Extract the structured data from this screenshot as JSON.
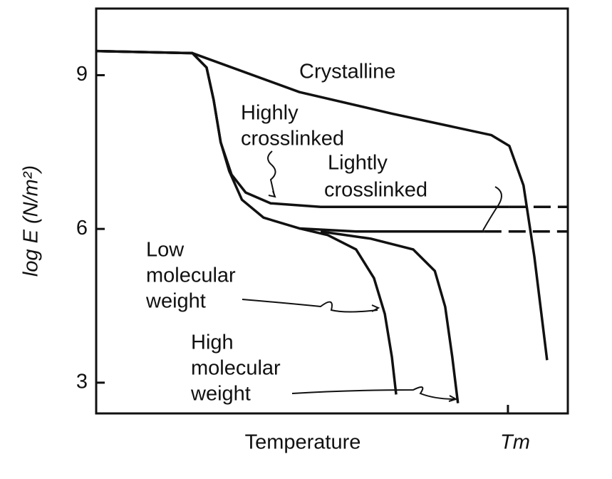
{
  "chart_data": {
    "type": "line",
    "ylabel": "log E (N/m²)",
    "xlabel": "Temperature",
    "xlim": [
      0,
      100
    ],
    "ylim": [
      2.4,
      10.3
    ],
    "xticks": [
      {
        "value": 87.3,
        "label": "Tm"
      }
    ],
    "yticks": [
      3,
      6,
      9
    ],
    "series": [
      {
        "color": "#111111",
        "style": "solid",
        "x": [
          0,
          20.4,
          43.1,
          62.7,
          83.8,
          87.6,
          90.6,
          92.9,
          94.4,
          95.6
        ],
        "values": [
          9.47,
          9.43,
          8.67,
          8.25,
          7.83,
          7.62,
          6.85,
          5.46,
          4.34,
          3.44
        ]
      },
      {
        "color": "#111111",
        "style": "solid",
        "x": [
          0,
          20.4,
          23.4,
          24.9,
          26.4,
          28.7,
          31.7,
          37,
          47.6,
          87.6
        ],
        "values": [
          9.47,
          9.43,
          9.15,
          8.52,
          7.69,
          7.06,
          6.71,
          6.5,
          6.43,
          6.43
        ]
      },
      {
        "color": "#111111",
        "style": "dashed",
        "x": [
          87.6,
          100
        ],
        "values": [
          6.43,
          6.43
        ]
      },
      {
        "color": "#111111",
        "style": "solid",
        "x": [
          0,
          20.4,
          23.4,
          24.9,
          26.4,
          28.2,
          30.9,
          35.5,
          43.1,
          55.1,
          82.3
        ],
        "values": [
          9.47,
          9.43,
          9.15,
          8.52,
          7.69,
          7.13,
          6.57,
          6.22,
          6.01,
          5.95,
          5.95
        ]
      },
      {
        "color": "#111111",
        "style": "dashed",
        "x": [
          82.3,
          100
        ],
        "values": [
          5.95,
          5.95
        ]
      },
      {
        "color": "#111111",
        "style": "solid",
        "x": [
          43.1,
          49.1,
          55.1,
          58.9,
          61.2,
          62.7,
          63.6
        ],
        "values": [
          6.01,
          5.88,
          5.6,
          5.04,
          4.34,
          3.5,
          2.77
        ]
      },
      {
        "color": "#111111",
        "style": "solid",
        "x": [
          47.6,
          58.2,
          67.2,
          71.8,
          74.0,
          75.5,
          76.7
        ],
        "values": [
          5.95,
          5.81,
          5.6,
          5.18,
          4.48,
          3.5,
          2.6
        ]
      }
    ],
    "annotations": [
      {
        "lines": [
          "Crystalline"
        ]
      },
      {
        "lines": [
          "Highly",
          "crosslinked"
        ]
      },
      {
        "lines": [
          "Lightly",
          "crosslinked"
        ]
      },
      {
        "lines": [
          "Low",
          "molecular",
          "weight"
        ]
      },
      {
        "lines": [
          "High",
          "molecular",
          "weight"
        ]
      }
    ]
  }
}
